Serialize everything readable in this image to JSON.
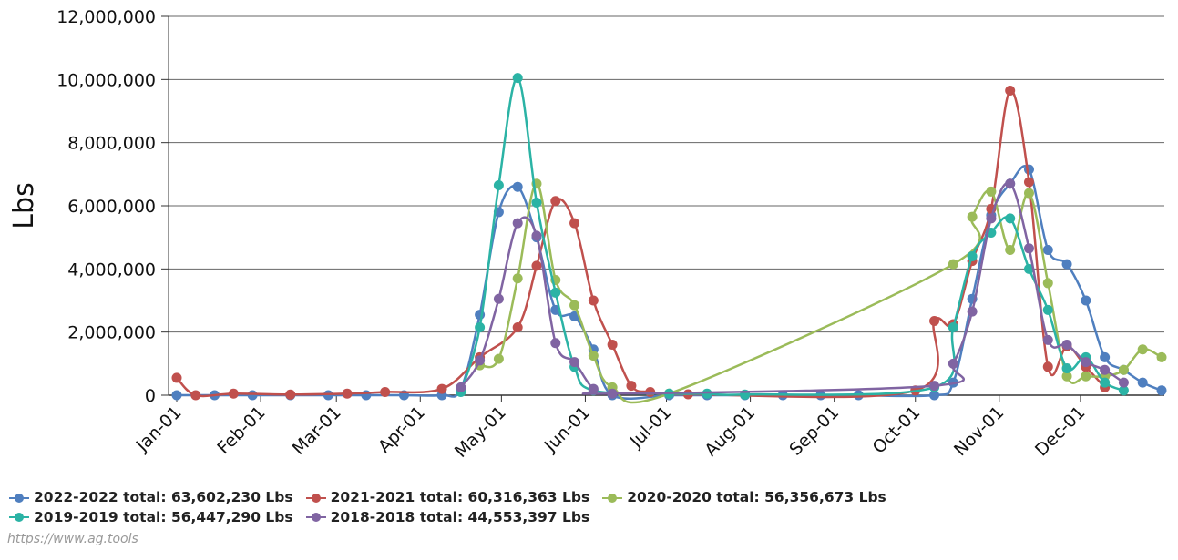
{
  "chart_data": {
    "type": "line",
    "title": "",
    "ylabel": "Lbs",
    "xlabel": "",
    "ylim": [
      0,
      12000000
    ],
    "yticks": [
      0,
      2000000,
      4000000,
      6000000,
      8000000,
      10000000,
      12000000
    ],
    "ytick_labels": [
      "0",
      "2,000,000",
      "4,000,000",
      "6,000,000",
      "8,000,000",
      "10,000,000",
      "12,000,000"
    ],
    "x_range": [
      "Jan-01",
      "Dec-31"
    ],
    "xticks": [
      {
        "label": "Jan-01",
        "date": "01-01"
      },
      {
        "label": "Feb-01",
        "date": "02-01"
      },
      {
        "label": "Mar-01",
        "date": "03-01"
      },
      {
        "label": "Apr-01",
        "date": "04-01"
      },
      {
        "label": "May-01",
        "date": "05-01"
      },
      {
        "label": "Jun-01",
        "date": "06-01"
      },
      {
        "label": "Jul-01",
        "date": "07-01"
      },
      {
        "label": "Aug-01",
        "date": "08-01"
      },
      {
        "label": "Sep-01",
        "date": "09-01"
      },
      {
        "label": "Oct-01",
        "date": "10-01"
      },
      {
        "label": "Nov-01",
        "date": "11-01"
      },
      {
        "label": "Dec-01",
        "date": "12-01"
      }
    ],
    "grid": true,
    "legend_position": "bottom",
    "series": [
      {
        "name": "2022-2022",
        "legend_label": "2022-2022 total: 63,602,230 Lbs",
        "color": "#4f7fbf",
        "points": [
          [
            "01-01",
            0
          ],
          [
            "01-15",
            0
          ],
          [
            "01-29",
            0
          ],
          [
            "02-12",
            0
          ],
          [
            "02-26",
            0
          ],
          [
            "03-12",
            0
          ],
          [
            "03-26",
            0
          ],
          [
            "04-09",
            0
          ],
          [
            "04-16",
            200000
          ],
          [
            "04-23",
            2550000
          ],
          [
            "04-30",
            5800000
          ],
          [
            "05-07",
            6600000
          ],
          [
            "05-14",
            5000000
          ],
          [
            "05-21",
            2700000
          ],
          [
            "05-28",
            2500000
          ],
          [
            "06-04",
            1450000
          ],
          [
            "06-11",
            0
          ],
          [
            "07-02",
            0
          ],
          [
            "07-16",
            0
          ],
          [
            "07-30",
            0
          ],
          [
            "08-13",
            0
          ],
          [
            "08-27",
            0
          ],
          [
            "09-10",
            0
          ],
          [
            "10-08",
            0
          ],
          [
            "10-15",
            400000
          ],
          [
            "10-22",
            3050000
          ],
          [
            "10-29",
            5700000
          ],
          [
            "11-05",
            6700000
          ],
          [
            "11-12",
            7150000
          ],
          [
            "11-19",
            4600000
          ],
          [
            "11-26",
            4150000
          ],
          [
            "12-03",
            3000000
          ],
          [
            "12-10",
            1200000
          ],
          [
            "12-17",
            800000
          ],
          [
            "12-24",
            400000
          ],
          [
            "12-31",
            150000
          ]
        ]
      },
      {
        "name": "2021-2021",
        "legend_label": "2021-2021 total: 60,316,363 Lbs",
        "color": "#c0504d",
        "points": [
          [
            "01-01",
            550000
          ],
          [
            "01-08",
            0
          ],
          [
            "01-22",
            50000
          ],
          [
            "02-12",
            20000
          ],
          [
            "03-05",
            50000
          ],
          [
            "03-19",
            100000
          ],
          [
            "04-09",
            200000
          ],
          [
            "04-23",
            1200000
          ],
          [
            "05-07",
            2150000
          ],
          [
            "05-14",
            4100000
          ],
          [
            "05-21",
            6150000
          ],
          [
            "05-28",
            5450000
          ],
          [
            "06-04",
            3000000
          ],
          [
            "06-11",
            1600000
          ],
          [
            "06-18",
            300000
          ],
          [
            "06-25",
            100000
          ],
          [
            "07-09",
            30000
          ],
          [
            "10-01",
            150000
          ],
          [
            "10-08",
            2350000
          ],
          [
            "10-15",
            2250000
          ],
          [
            "10-22",
            4250000
          ],
          [
            "10-29",
            5900000
          ],
          [
            "11-05",
            9650000
          ],
          [
            "11-12",
            6750000
          ],
          [
            "11-19",
            900000
          ],
          [
            "11-26",
            1550000
          ],
          [
            "12-03",
            900000
          ],
          [
            "12-10",
            250000
          ]
        ]
      },
      {
        "name": "2020-2020",
        "legend_label": "2020-2020 total: 56,356,673 Lbs",
        "color": "#9bbb59",
        "points": [
          [
            "04-23",
            950000
          ],
          [
            "04-30",
            1150000
          ],
          [
            "05-07",
            3700000
          ],
          [
            "05-14",
            6700000
          ],
          [
            "05-21",
            3650000
          ],
          [
            "05-28",
            2850000
          ],
          [
            "06-04",
            1250000
          ],
          [
            "06-11",
            250000
          ],
          [
            "07-02",
            50000
          ],
          [
            "10-15",
            4150000
          ],
          [
            "10-22",
            5650000
          ],
          [
            "10-29",
            6450000
          ],
          [
            "11-05",
            4600000
          ],
          [
            "11-12",
            6400000
          ],
          [
            "11-19",
            3550000
          ],
          [
            "11-26",
            600000
          ],
          [
            "12-03",
            600000
          ],
          [
            "12-10",
            600000
          ],
          [
            "12-17",
            800000
          ],
          [
            "12-24",
            1450000
          ],
          [
            "12-31",
            1200000
          ]
        ]
      },
      {
        "name": "2019-2019",
        "legend_label": "2019-2019 total: 56,447,290 Lbs",
        "color": "#2bb3a5",
        "points": [
          [
            "04-16",
            100000
          ],
          [
            "04-23",
            2150000
          ],
          [
            "04-30",
            6650000
          ],
          [
            "05-07",
            10050000
          ],
          [
            "05-14",
            6100000
          ],
          [
            "05-21",
            3250000
          ],
          [
            "05-28",
            900000
          ],
          [
            "06-04",
            150000
          ],
          [
            "07-02",
            50000
          ],
          [
            "07-16",
            50000
          ],
          [
            "07-30",
            20000
          ],
          [
            "10-08",
            250000
          ],
          [
            "10-15",
            2150000
          ],
          [
            "10-22",
            4400000
          ],
          [
            "10-29",
            5150000
          ],
          [
            "11-05",
            5600000
          ],
          [
            "11-12",
            4000000
          ],
          [
            "11-19",
            2700000
          ],
          [
            "11-26",
            850000
          ],
          [
            "12-03",
            1200000
          ],
          [
            "12-10",
            400000
          ],
          [
            "12-17",
            150000
          ]
        ]
      },
      {
        "name": "2018-2018",
        "legend_label": "2018-2018 total: 44,553,397 Lbs",
        "color": "#8064a2",
        "points": [
          [
            "04-16",
            250000
          ],
          [
            "04-23",
            1100000
          ],
          [
            "04-30",
            3050000
          ],
          [
            "05-07",
            5450000
          ],
          [
            "05-14",
            5050000
          ],
          [
            "05-21",
            1650000
          ],
          [
            "05-28",
            1050000
          ],
          [
            "06-04",
            200000
          ],
          [
            "06-11",
            50000
          ],
          [
            "10-08",
            300000
          ],
          [
            "10-15",
            1000000
          ],
          [
            "10-22",
            2650000
          ],
          [
            "10-29",
            5600000
          ],
          [
            "11-05",
            6700000
          ],
          [
            "11-12",
            4650000
          ],
          [
            "11-19",
            1750000
          ],
          [
            "11-26",
            1600000
          ],
          [
            "12-03",
            1050000
          ],
          [
            "12-10",
            800000
          ],
          [
            "12-17",
            400000
          ]
        ]
      }
    ]
  },
  "credit": "https://www.ag.tools"
}
